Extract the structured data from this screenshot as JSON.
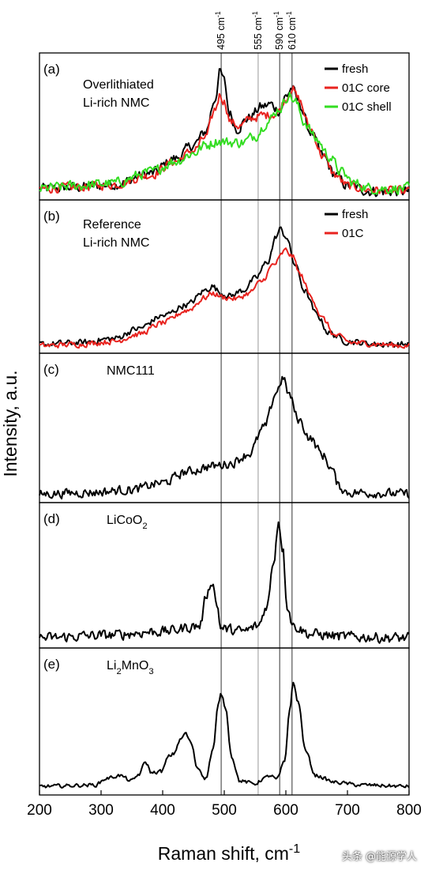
{
  "watermark": "头条 @能源学人",
  "chart_data": {
    "type": "line",
    "xlabel": "Raman shift, cm",
    "xlabel_sup": "-1",
    "ylabel": "Intensity, a.u.",
    "xlim": [
      200,
      800
    ],
    "xticks": [
      200,
      300,
      400,
      500,
      600,
      700,
      800
    ],
    "grid": false,
    "reference_lines": [
      {
        "x": 495,
        "label": "495 cm",
        "sup": "-1",
        "color": "#555555"
      },
      {
        "x": 555,
        "label": "555 cm",
        "sup": "-1",
        "color": "#aaaaaa"
      },
      {
        "x": 590,
        "label": "590 cm",
        "sup": "-1",
        "color": "#555555"
      },
      {
        "x": 610,
        "label": "610 cm",
        "sup": "-1",
        "color": "#555555"
      }
    ],
    "panels": [
      {
        "tag": "(a)",
        "labels": [
          {
            "text": "Overlithiated"
          },
          {
            "text": "Li-rich NMC"
          }
        ],
        "legend_position": "top-right",
        "series": [
          {
            "name": "fresh",
            "color": "#000000",
            "noise": 0.035,
            "points": [
              [
                200,
                0.06
              ],
              [
                260,
                0.07
              ],
              [
                320,
                0.09
              ],
              [
                380,
                0.17
              ],
              [
                420,
                0.28
              ],
              [
                450,
                0.38
              ],
              [
                470,
                0.48
              ],
              [
                485,
                0.72
              ],
              [
                493,
                0.92
              ],
              [
                500,
                0.85
              ],
              [
                508,
                0.62
              ],
              [
                520,
                0.5
              ],
              [
                540,
                0.58
              ],
              [
                560,
                0.66
              ],
              [
                575,
                0.68
              ],
              [
                590,
                0.63
              ],
              [
                600,
                0.74
              ],
              [
                610,
                0.8
              ],
              [
                620,
                0.7
              ],
              [
                640,
                0.48
              ],
              [
                660,
                0.3
              ],
              [
                680,
                0.16
              ],
              [
                700,
                0.08
              ],
              [
                740,
                0.04
              ],
              [
                800,
                0.04
              ]
            ]
          },
          {
            "name": "01C core",
            "color": "#e8231f",
            "noise": 0.03,
            "points": [
              [
                200,
                0.06
              ],
              [
                260,
                0.07
              ],
              [
                320,
                0.09
              ],
              [
                380,
                0.16
              ],
              [
                420,
                0.26
              ],
              [
                450,
                0.34
              ],
              [
                470,
                0.44
              ],
              [
                485,
                0.64
              ],
              [
                493,
                0.75
              ],
              [
                500,
                0.7
              ],
              [
                510,
                0.55
              ],
              [
                525,
                0.52
              ],
              [
                545,
                0.58
              ],
              [
                565,
                0.6
              ],
              [
                585,
                0.61
              ],
              [
                600,
                0.72
              ],
              [
                610,
                0.8
              ],
              [
                620,
                0.72
              ],
              [
                640,
                0.5
              ],
              [
                660,
                0.3
              ],
              [
                680,
                0.16
              ],
              [
                700,
                0.08
              ],
              [
                740,
                0.05
              ],
              [
                800,
                0.04
              ]
            ]
          },
          {
            "name": "01C shell",
            "color": "#33dd22",
            "noise": 0.035,
            "points": [
              [
                200,
                0.06
              ],
              [
                260,
                0.08
              ],
              [
                320,
                0.1
              ],
              [
                380,
                0.18
              ],
              [
                420,
                0.26
              ],
              [
                450,
                0.32
              ],
              [
                470,
                0.38
              ],
              [
                490,
                0.41
              ],
              [
                510,
                0.4
              ],
              [
                530,
                0.4
              ],
              [
                550,
                0.45
              ],
              [
                570,
                0.55
              ],
              [
                590,
                0.65
              ],
              [
                605,
                0.75
              ],
              [
                615,
                0.7
              ],
              [
                630,
                0.55
              ],
              [
                650,
                0.42
              ],
              [
                670,
                0.3
              ],
              [
                690,
                0.18
              ],
              [
                710,
                0.1
              ],
              [
                740,
                0.06
              ],
              [
                800,
                0.06
              ]
            ]
          }
        ]
      },
      {
        "tag": "(b)",
        "labels": [
          {
            "text": "Reference"
          },
          {
            "text": "Li-rich NMC"
          }
        ],
        "legend_position": "top-right",
        "series": [
          {
            "name": "fresh",
            "color": "#000000",
            "noise": 0.02,
            "points": [
              [
                200,
                0.04
              ],
              [
                260,
                0.05
              ],
              [
                320,
                0.08
              ],
              [
                360,
                0.15
              ],
              [
                400,
                0.24
              ],
              [
                440,
                0.32
              ],
              [
                470,
                0.42
              ],
              [
                480,
                0.45
              ],
              [
                495,
                0.4
              ],
              [
                510,
                0.38
              ],
              [
                530,
                0.42
              ],
              [
                550,
                0.5
              ],
              [
                570,
                0.62
              ],
              [
                585,
                0.8
              ],
              [
                590,
                0.85
              ],
              [
                600,
                0.8
              ],
              [
                615,
                0.6
              ],
              [
                630,
                0.42
              ],
              [
                650,
                0.25
              ],
              [
                670,
                0.12
              ],
              [
                700,
                0.06
              ],
              [
                750,
                0.04
              ],
              [
                800,
                0.04
              ]
            ]
          },
          {
            "name": "01C",
            "color": "#e8231f",
            "noise": 0.018,
            "points": [
              [
                200,
                0.03
              ],
              [
                260,
                0.04
              ],
              [
                320,
                0.06
              ],
              [
                360,
                0.11
              ],
              [
                400,
                0.19
              ],
              [
                440,
                0.28
              ],
              [
                470,
                0.37
              ],
              [
                480,
                0.4
              ],
              [
                500,
                0.37
              ],
              [
                520,
                0.36
              ],
              [
                540,
                0.4
              ],
              [
                560,
                0.48
              ],
              [
                580,
                0.6
              ],
              [
                600,
                0.7
              ],
              [
                610,
                0.66
              ],
              [
                625,
                0.52
              ],
              [
                640,
                0.38
              ],
              [
                660,
                0.22
              ],
              [
                680,
                0.1
              ],
              [
                710,
                0.05
              ],
              [
                800,
                0.03
              ]
            ]
          }
        ]
      },
      {
        "tag": "(c)",
        "labels": [
          {
            "text": "NMC111"
          }
        ],
        "series": [
          {
            "name": "",
            "color": "#000000",
            "noise": 0.03,
            "points": [
              [
                200,
                0.04
              ],
              [
                280,
                0.05
              ],
              [
                350,
                0.07
              ],
              [
                400,
                0.12
              ],
              [
                440,
                0.2
              ],
              [
                480,
                0.24
              ],
              [
                510,
                0.26
              ],
              [
                540,
                0.33
              ],
              [
                565,
                0.52
              ],
              [
                585,
                0.78
              ],
              [
                595,
                0.88
              ],
              [
                605,
                0.76
              ],
              [
                620,
                0.58
              ],
              [
                640,
                0.44
              ],
              [
                660,
                0.32
              ],
              [
                675,
                0.22
              ],
              [
                685,
                0.1
              ],
              [
                700,
                0.05
              ],
              [
                800,
                0.04
              ]
            ]
          }
        ]
      },
      {
        "tag": "(d)",
        "labels": [
          {
            "text": "LiCoO",
            "sub": "2"
          }
        ],
        "series": [
          {
            "name": "",
            "color": "#000000",
            "noise": 0.035,
            "points": [
              [
                200,
                0.05
              ],
              [
                300,
                0.07
              ],
              [
                400,
                0.1
              ],
              [
                460,
                0.14
              ],
              [
                472,
                0.38
              ],
              [
                480,
                0.48
              ],
              [
                488,
                0.3
              ],
              [
                495,
                0.12
              ],
              [
                530,
                0.1
              ],
              [
                555,
                0.14
              ],
              [
                570,
                0.3
              ],
              [
                580,
                0.62
              ],
              [
                588,
                0.92
              ],
              [
                595,
                0.72
              ],
              [
                602,
                0.3
              ],
              [
                612,
                0.14
              ],
              [
                640,
                0.08
              ],
              [
                700,
                0.06
              ],
              [
                800,
                0.05
              ]
            ]
          }
        ]
      },
      {
        "tag": "(e)",
        "labels": [
          {
            "text": "Li",
            "sub": "2",
            "after": "MnO",
            "sub2": "3"
          }
        ],
        "series": [
          {
            "name": "",
            "color": "#000000",
            "noise": 0.012,
            "points": [
              [
                200,
                0.04
              ],
              [
                290,
                0.05
              ],
              [
                310,
                0.1
              ],
              [
                330,
                0.12
              ],
              [
                350,
                0.08
              ],
              [
                362,
                0.13
              ],
              [
                372,
                0.22
              ],
              [
                382,
                0.14
              ],
              [
                398,
                0.15
              ],
              [
                410,
                0.26
              ],
              [
                418,
                0.28
              ],
              [
                428,
                0.38
              ],
              [
                437,
                0.43
              ],
              [
                446,
                0.36
              ],
              [
                456,
                0.18
              ],
              [
                470,
                0.1
              ],
              [
                482,
                0.32
              ],
              [
                490,
                0.63
              ],
              [
                495,
                0.72
              ],
              [
                502,
                0.62
              ],
              [
                512,
                0.26
              ],
              [
                525,
                0.08
              ],
              [
                550,
                0.06
              ],
              [
                565,
                0.1
              ],
              [
                575,
                0.12
              ],
              [
                585,
                0.09
              ],
              [
                598,
                0.22
              ],
              [
                606,
                0.6
              ],
              [
                612,
                0.8
              ],
              [
                620,
                0.66
              ],
              [
                632,
                0.3
              ],
              [
                648,
                0.12
              ],
              [
                680,
                0.07
              ],
              [
                720,
                0.05
              ],
              [
                800,
                0.04
              ]
            ]
          }
        ]
      }
    ]
  }
}
